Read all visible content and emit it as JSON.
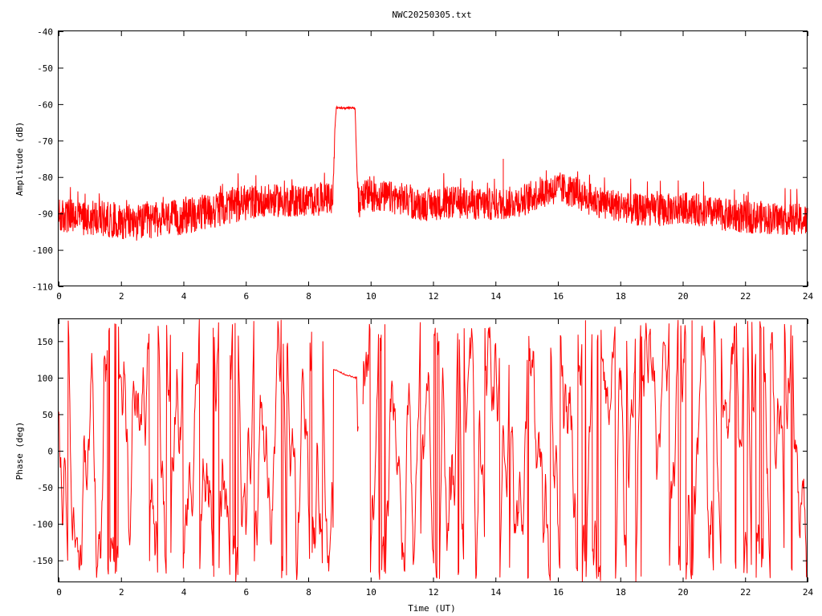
{
  "title": "NWC20250305.txt",
  "chart_data": [
    {
      "type": "line",
      "ylabel": "Amplitude (dB)",
      "xlim": [
        0,
        24
      ],
      "ylim": [
        -110,
        -40
      ],
      "x_ticks": [
        "0",
        "2",
        "4",
        "6",
        "8",
        "10",
        "12",
        "14",
        "16",
        "18",
        "20",
        "22",
        "24"
      ],
      "y_ticks": [
        "-40",
        "-50",
        "-60",
        "-70",
        "-80",
        "-90",
        "-100",
        "-110"
      ],
      "series": [
        {
          "color": "#ff0000",
          "x": [
            0,
            0.5,
            1,
            1.5,
            2,
            2.5,
            3,
            3.5,
            4,
            4.5,
            5,
            5.5,
            6,
            6.5,
            7,
            7.5,
            8,
            8.5,
            8.8,
            8.85,
            8.9,
            9.0,
            9.5,
            9.55,
            9.6,
            9.65,
            9.7,
            10,
            10.5,
            11,
            11.5,
            12,
            12.5,
            13,
            13.5,
            14,
            14.5,
            15,
            15.5,
            16,
            16.5,
            17,
            17.5,
            18,
            18.5,
            19,
            19.5,
            20,
            20.5,
            21,
            21.5,
            22,
            22.5,
            23,
            23.5,
            24
          ],
          "mean": [
            -91,
            -91,
            -91,
            -91.5,
            -92,
            -92.5,
            -92,
            -91.5,
            -91,
            -90,
            -89,
            -88,
            -87,
            -86.5,
            -86.5,
            -86.5,
            -86.5,
            -86,
            -86,
            -67,
            -61,
            -61,
            -61,
            -75,
            -87,
            -87,
            -85,
            -85,
            -85.5,
            -86,
            -87.5,
            -87.5,
            -87,
            -87,
            -87.5,
            -87.5,
            -87,
            -86,
            -84,
            -83,
            -84,
            -86,
            -87,
            -88,
            -89,
            -89,
            -89,
            -88.5,
            -89,
            -90,
            -90.5,
            -91,
            -91,
            -91.5,
            -91.5,
            -92
          ],
          "spread": [
            5,
            5,
            5,
            5,
            5,
            5,
            5,
            5,
            5,
            5,
            5,
            5,
            5,
            4.5,
            4.5,
            4.5,
            4.5,
            4.5,
            4.5,
            0.5,
            0.5,
            0.5,
            0.5,
            0.5,
            4.5,
            4.5,
            4.5,
            4.5,
            4.5,
            4.5,
            4.5,
            4.5,
            4.5,
            4.5,
            4.5,
            4.5,
            4.5,
            4.5,
            4.5,
            4.5,
            4.5,
            4.5,
            4.5,
            4.5,
            4.5,
            4.5,
            4.5,
            4.5,
            4.5,
            4.5,
            4.5,
            4.5,
            4.5,
            4.5,
            4.5,
            4.5
          ],
          "notable_spike": {
            "x": 14.25,
            "y": -75
          }
        }
      ]
    },
    {
      "type": "line",
      "xlabel": "Time (UT)",
      "ylabel": "Phase (deg)",
      "xlim": [
        0,
        24
      ],
      "ylim": [
        -180,
        180
      ],
      "x_ticks": [
        "0",
        "2",
        "4",
        "6",
        "8",
        "10",
        "12",
        "14",
        "16",
        "18",
        "20",
        "22",
        "24"
      ],
      "y_ticks": [
        "150",
        "100",
        "50",
        "0",
        "-50",
        "-100",
        "-150"
      ],
      "series": [
        {
          "color": "#ff0000",
          "behavior": "rapid wrapping between -180 and 180 over 0-24 UT, except a smooth segment from about 8.8 to 9.6 UT",
          "smooth_segment": {
            "x": [
              8.8,
              8.9,
              9.0,
              9.1,
              9.2,
              9.3,
              9.4,
              9.5,
              9.55
            ],
            "y": [
              112,
              110,
              108,
              106,
              104,
              103,
              101,
              100,
              100
            ]
          },
          "gap": [
            9.6,
            9.75
          ]
        }
      ]
    }
  ]
}
